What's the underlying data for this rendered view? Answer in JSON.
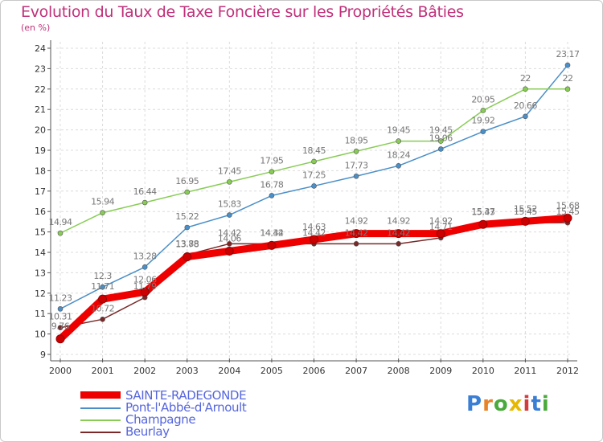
{
  "page": {
    "title": "Evolution du Taux de Taxe Foncière sur les Propriétés Bâties",
    "subtitle": "(en %)",
    "logo_letters": [
      "P",
      "r",
      "o",
      "x",
      "i",
      "t",
      "i"
    ],
    "logo_colors": [
      "#3a7fd4",
      "#e8832a",
      "#4aaa3c",
      "#e6b800",
      "#d23c3c",
      "#3a7fd4",
      "#4aaa3c"
    ]
  },
  "chart_data": {
    "type": "line",
    "title": "Evolution du Taux de Taxe Foncière sur les Propriétés Bâties",
    "ylabel": "(en %)",
    "xlabel": "",
    "categories": [
      "2000",
      "2001",
      "2002",
      "2003",
      "2004",
      "2005",
      "2006",
      "2007",
      "2008",
      "2009",
      "2010",
      "2011",
      "2012"
    ],
    "ylim": [
      9,
      24
    ],
    "yticks": [
      "9",
      "10",
      "11",
      "12",
      "13",
      "14",
      "15",
      "16",
      "17",
      "18",
      "19",
      "20",
      "21",
      "22",
      "23",
      "24"
    ],
    "grid": true,
    "legend_position": "bottom-left",
    "series": [
      {
        "name": "SAINTE-RADEGONDE",
        "color": "#ee0000",
        "values": [
          9.76,
          11.71,
          12.06,
          13.78,
          14.06,
          14.34,
          14.63,
          14.92,
          14.92,
          14.92,
          15.37,
          15.52,
          15.68
        ],
        "labels": [
          "9.76",
          "11.71",
          "12.06",
          "13.78",
          "14.06",
          "14.34",
          "14.63",
          "14.92",
          "14.92",
          "14.92",
          "15.37",
          "15.52",
          "15.68"
        ]
      },
      {
        "name": "Pont-l'Abbé-d'Arnoult",
        "color": "#4a8fc8",
        "values": [
          11.23,
          12.3,
          13.28,
          15.22,
          15.83,
          16.78,
          17.25,
          17.73,
          18.24,
          19.06,
          19.92,
          20.66,
          23.17
        ],
        "labels": [
          "11.23",
          "12.3",
          "13.28",
          "15.22",
          "15.83",
          "16.78",
          "17.25",
          "17.73",
          "18.24",
          "19.06",
          "19.92",
          "20.66",
          "23.17"
        ]
      },
      {
        "name": "Champagne",
        "color": "#88cc55",
        "values": [
          14.94,
          15.94,
          16.44,
          16.95,
          17.45,
          17.95,
          18.45,
          18.95,
          19.45,
          19.45,
          20.95,
          22,
          22
        ],
        "labels": [
          "14.94",
          "15.94",
          "16.44",
          "16.95",
          "17.45",
          "17.95",
          "18.45",
          "18.95",
          "19.45",
          "19.45",
          "20.95",
          "22",
          "22"
        ]
      },
      {
        "name": "Beurlay",
        "color": "#7a2828",
        "values": [
          10.31,
          10.72,
          11.79,
          13.88,
          14.42,
          14.42,
          14.42,
          14.42,
          14.42,
          14.71,
          15.43,
          15.45,
          15.45
        ],
        "labels": [
          "10.31",
          "10.72",
          "11.79",
          "13.88",
          "14.42",
          "14.42",
          "14.42",
          "14.42",
          "14.42",
          "14.71",
          "15.43",
          "15.45",
          "15.45"
        ]
      }
    ]
  }
}
